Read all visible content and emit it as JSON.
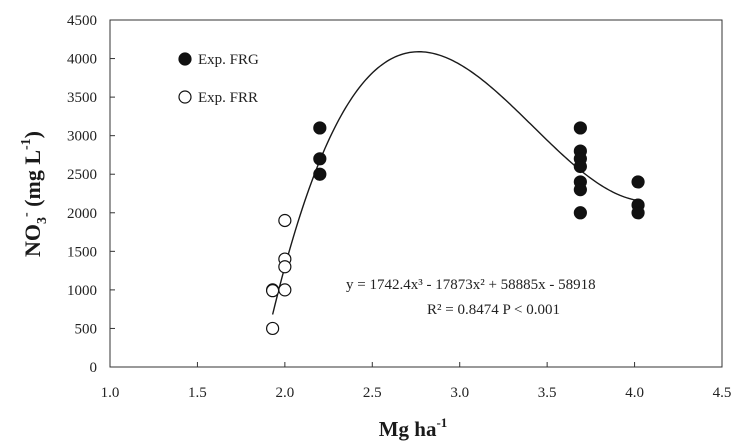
{
  "chart_data": {
    "type": "scatter",
    "xlabel_main": "Mg ha",
    "xlabel_sup": "-1",
    "ylabel_parts": {
      "a": "NO",
      "sub": "3",
      "sup1": "-",
      "b": " (mg L",
      "sup2": "-1",
      "c": ")"
    },
    "xlim": [
      1.0,
      4.5
    ],
    "ylim": [
      0,
      4500
    ],
    "xticks": [
      "1.0",
      "1.5",
      "2.0",
      "2.5",
      "3.0",
      "3.5",
      "4.0",
      "4.5"
    ],
    "yticks": [
      "0",
      "500",
      "1000",
      "1500",
      "2000",
      "2500",
      "3000",
      "3500",
      "4000",
      "4500"
    ],
    "grid": false,
    "legend_position": "top-left",
    "series": [
      {
        "name": "Exp. FRG",
        "marker": "filled-circle",
        "color": "#111111",
        "points": [
          [
            2.2,
            3100
          ],
          [
            2.2,
            2700
          ],
          [
            2.2,
            2500
          ],
          [
            3.69,
            3100
          ],
          [
            3.69,
            2800
          ],
          [
            3.69,
            2700
          ],
          [
            3.69,
            2600
          ],
          [
            3.69,
            2400
          ],
          [
            3.69,
            2300
          ],
          [
            3.69,
            2000
          ],
          [
            4.02,
            2400
          ],
          [
            4.02,
            2100
          ],
          [
            4.02,
            2000
          ]
        ]
      },
      {
        "name": "Exp. FRR",
        "marker": "open-circle",
        "color": "#111111",
        "points": [
          [
            1.93,
            1000
          ],
          [
            1.93,
            990
          ],
          [
            1.93,
            500
          ],
          [
            2.0,
            1900
          ],
          [
            2.0,
            1400
          ],
          [
            2.0,
            1300
          ],
          [
            2.0,
            1000
          ]
        ]
      }
    ],
    "fit": {
      "coefficients": [
        1742.4,
        -17873,
        58885,
        -58918
      ],
      "x_range": [
        1.93,
        4.02
      ],
      "equation": "y = 1742.4x³  - 17873x²  + 58885x  - 58918",
      "stats": "R² = 0.8474   P < 0.001"
    }
  }
}
